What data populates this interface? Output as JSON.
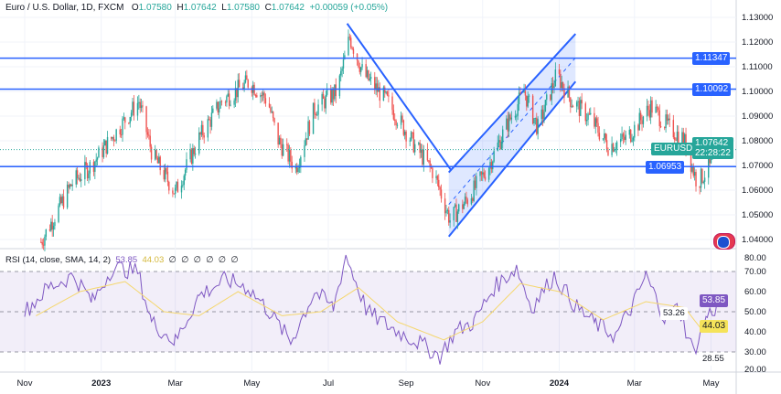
{
  "header": {
    "symbol": "Euro / U.S. Dollar, 1D, FXCM",
    "o_label": "O",
    "o": "1.07580",
    "h_label": "H",
    "h": "1.07642",
    "l_label": "L",
    "l": "1.07580",
    "c_label": "C",
    "c": "1.07642",
    "change": "+0.00059 (+0.05%)"
  },
  "rsi_legend": {
    "label": "RSI (14, close, SMA, 14, 2)",
    "rsi": "53.85",
    "sma": "44.03",
    "empty": [
      "∅",
      "∅",
      "∅",
      "∅",
      "∅",
      "∅"
    ]
  },
  "tags": {
    "ticker": "EURUSD",
    "price": "1.07642",
    "countdown": "22:28:22",
    "level1": "1.11347",
    "level2": "1.10092",
    "level3": "1.06953",
    "rsi_val": "53.85",
    "rsi_sma": "44.03",
    "rsi_mid": "53.26",
    "rsi_low": "28.55"
  },
  "colors": {
    "up": "#26a69a",
    "down": "#ef5350",
    "line": "#2962ff",
    "rsi": "#7e57c2",
    "sma": "#f5d76e"
  },
  "chart_data": [
    {
      "type": "candlestick",
      "title": "Euro / U.S. Dollar, 1D, FXCM",
      "ylim": [
        1.035,
        1.132
      ],
      "yticks": [
        "1.13000",
        "1.12000",
        "1.11000",
        "1.10000",
        "1.09000",
        "1.08000",
        "1.07000",
        "1.06000",
        "1.05000",
        "1.04000"
      ],
      "xticks": [
        {
          "label": "Nov",
          "date": "2022-11-01"
        },
        {
          "label": "2023",
          "date": "2023-01-01"
        },
        {
          "label": "Mar",
          "date": "2023-03-01"
        },
        {
          "label": "May",
          "date": "2023-05-01"
        },
        {
          "label": "Jul",
          "date": "2023-07-01"
        },
        {
          "label": "Sep",
          "date": "2023-09-01"
        },
        {
          "label": "Nov",
          "date": "2023-11-01"
        },
        {
          "label": "2024",
          "date": "2024-01-01"
        },
        {
          "label": "Mar",
          "date": "2024-03-01"
        },
        {
          "label": "May",
          "date": "2024-05-01"
        }
      ],
      "closes": [
        [
          "2022-11-14",
          1.039
        ],
        [
          "2022-12-09",
          1.063
        ],
        [
          "2022-12-24",
          1.07
        ],
        [
          "2023-01-15",
          1.085
        ],
        [
          "2023-01-31",
          1.096
        ],
        [
          "2023-02-11",
          1.074
        ],
        [
          "2023-03-01",
          1.059
        ],
        [
          "2023-03-20",
          1.081
        ],
        [
          "2023-04-07",
          1.096
        ],
        [
          "2023-04-29",
          1.104
        ],
        [
          "2023-05-14",
          1.096
        ],
        [
          "2023-05-21",
          1.081
        ],
        [
          "2023-06-05",
          1.069
        ],
        [
          "2023-06-20",
          1.093
        ],
        [
          "2023-07-08",
          1.1
        ],
        [
          "2023-07-18",
          1.122
        ],
        [
          "2023-07-29",
          1.107
        ],
        [
          "2023-08-17",
          1.096
        ],
        [
          "2023-09-08",
          1.078
        ],
        [
          "2023-09-23",
          1.067
        ],
        [
          "2023-10-06",
          1.048
        ],
        [
          "2023-10-21",
          1.057
        ],
        [
          "2023-11-05",
          1.069
        ],
        [
          "2023-11-19",
          1.085
        ],
        [
          "2023-12-04",
          1.1
        ],
        [
          "2023-12-15",
          1.085
        ],
        [
          "2023-12-30",
          1.107
        ],
        [
          "2024-01-11",
          1.096
        ],
        [
          "2024-01-26",
          1.089
        ],
        [
          "2024-02-09",
          1.078
        ],
        [
          "2024-02-24",
          1.081
        ],
        [
          "2024-03-14",
          1.094
        ],
        [
          "2024-03-29",
          1.085
        ],
        [
          "2024-04-09",
          1.081
        ],
        [
          "2024-04-20",
          1.063
        ],
        [
          "2024-05-01",
          1.07
        ],
        [
          "2024-05-08",
          1.0764
        ]
      ],
      "horizontal_levels": [
        1.11347,
        1.10092,
        1.06953
      ],
      "current_price": 1.07642,
      "trendlines": [
        {
          "from": [
            "2023-07-16",
            1.1275
          ],
          "to": [
            "2023-10-07",
            1.068
          ]
        }
      ],
      "channel": {
        "lower": {
          "from": [
            "2023-10-05",
            1.0412
          ],
          "to": [
            "2024-01-14",
            1.104
          ]
        },
        "upper": {
          "from": [
            "2023-10-05",
            1.0672
          ],
          "to": [
            "2024-01-14",
            1.1233
          ]
        }
      }
    },
    {
      "type": "line",
      "title": "RSI (14, close, SMA, 14, 2)",
      "ylim": [
        20,
        80
      ],
      "yticks": [
        "80.00",
        "70.00",
        "60.00",
        "50.00",
        "40.00",
        "30.00",
        "20.00"
      ],
      "bands": [
        70,
        50,
        30
      ],
      "series": [
        {
          "name": "RSI",
          "points": [
            [
              "2022-11-01",
              50
            ],
            [
              "2022-11-20",
              62
            ],
            [
              "2022-12-10",
              68
            ],
            [
              "2022-12-25",
              55
            ],
            [
              "2023-01-10",
              72
            ],
            [
              "2023-01-30",
              70
            ],
            [
              "2023-02-10",
              45
            ],
            [
              "2023-03-01",
              35
            ],
            [
              "2023-03-20",
              58
            ],
            [
              "2023-04-10",
              66
            ],
            [
              "2023-04-28",
              62
            ],
            [
              "2023-05-15",
              50
            ],
            [
              "2023-06-01",
              35
            ],
            [
              "2023-06-20",
              60
            ],
            [
              "2023-07-05",
              52
            ],
            [
              "2023-07-15",
              78
            ],
            [
              "2023-08-01",
              50
            ],
            [
              "2023-08-20",
              42
            ],
            [
              "2023-09-10",
              35
            ],
            [
              "2023-09-28",
              28
            ],
            [
              "2023-10-10",
              40
            ],
            [
              "2023-10-25",
              45
            ],
            [
              "2023-11-10",
              62
            ],
            [
              "2023-11-28",
              72
            ],
            [
              "2023-12-10",
              52
            ],
            [
              "2023-12-28",
              68
            ],
            [
              "2024-01-15",
              52
            ],
            [
              "2024-01-30",
              44
            ],
            [
              "2024-02-15",
              38
            ],
            [
              "2024-03-01",
              55
            ],
            [
              "2024-03-10",
              68
            ],
            [
              "2024-03-25",
              47
            ],
            [
              "2024-04-05",
              52
            ],
            [
              "2024-04-17",
              30
            ],
            [
              "2024-04-28",
              48
            ],
            [
              "2024-05-08",
              53.85
            ]
          ]
        },
        {
          "name": "SMA",
          "points": [
            [
              "2022-11-10",
              48
            ],
            [
              "2022-12-15",
              60
            ],
            [
              "2023-01-20",
              65
            ],
            [
              "2023-02-20",
              50
            ],
            [
              "2023-03-20",
              48
            ],
            [
              "2023-04-20",
              60
            ],
            [
              "2023-05-25",
              48
            ],
            [
              "2023-06-25",
              50
            ],
            [
              "2023-07-25",
              62
            ],
            [
              "2023-08-25",
              45
            ],
            [
              "2023-10-01",
              36
            ],
            [
              "2023-11-01",
              45
            ],
            [
              "2023-12-01",
              64
            ],
            [
              "2024-01-01",
              60
            ],
            [
              "2024-02-05",
              46
            ],
            [
              "2024-03-10",
              55
            ],
            [
              "2024-04-10",
              52
            ],
            [
              "2024-04-25",
              40
            ],
            [
              "2024-05-08",
              44.03
            ]
          ]
        }
      ]
    }
  ]
}
